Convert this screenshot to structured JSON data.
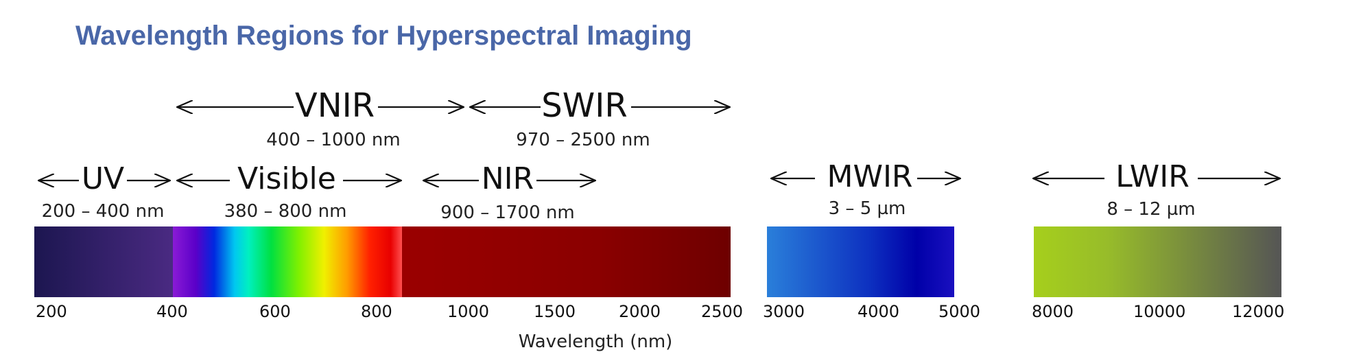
{
  "title": "Wavelength Regions for Hyperspectral Imaging",
  "bands": {
    "vnir": {
      "name": "VNIR",
      "range": "400 – 1000 nm"
    },
    "swir": {
      "name": "SWIR",
      "range": "970 – 2500 nm"
    },
    "uv": {
      "name": "UV",
      "range": "200 – 400 nm"
    },
    "visible": {
      "name": "Visible",
      "range": "380 – 800 nm"
    },
    "nir": {
      "name": "NIR",
      "range": "900 – 1700 nm"
    },
    "mwir": {
      "name": "MWIR",
      "range": "3 – 5 µm"
    },
    "lwir": {
      "name": "LWIR",
      "range": "8 – 12 µm"
    }
  },
  "axis": {
    "title": "Wavelength (nm)",
    "ticks": [
      "200",
      "400",
      "600",
      "800",
      "1000",
      "1500",
      "2000",
      "2500",
      "3000",
      "4000",
      "5000",
      "8000",
      "10000",
      "12000"
    ]
  },
  "colors": {
    "title": "#4A67A8",
    "uv_start": "#1C1650",
    "uv_end": "#4A2A82",
    "nir": "#9A0000",
    "nir_end": "#6E0000",
    "mwir_start": "#2A7FDA",
    "mwir_end": "#0A00B0",
    "lwir_start": "#A6CF1C",
    "lwir_end": "#555555"
  }
}
